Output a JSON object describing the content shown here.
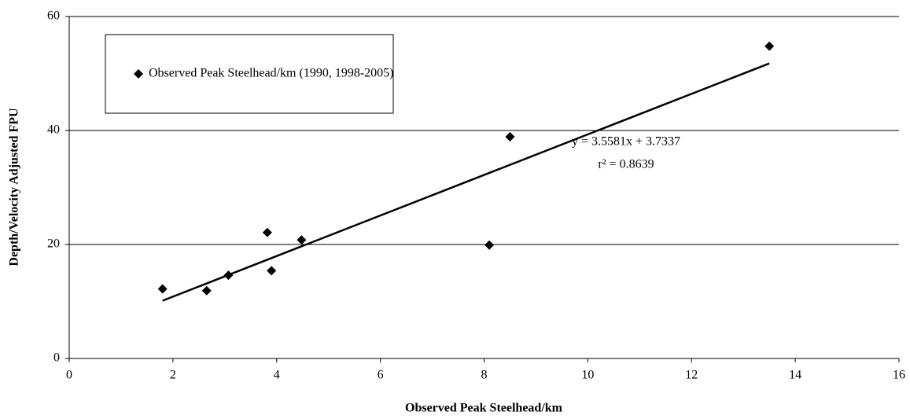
{
  "chart_data": {
    "type": "scatter",
    "x_label": "Observed Peak Steelhead/km",
    "y_label": "Depth/Velocity Adjusted FPU",
    "series": [
      {
        "name": "Observed Peak Steelhead/km (1990, 1998-2005)",
        "color": "#000000",
        "x": [
          1.8,
          2.65,
          3.07,
          3.82,
          3.9,
          4.48,
          8.1,
          8.5,
          13.5
        ],
        "values": [
          12.2,
          11.9,
          14.6,
          22.1,
          15.4,
          20.8,
          19.9,
          38.9,
          54.8
        ]
      }
    ],
    "trendline": {
      "color": "#000000",
      "x": [
        1.8,
        13.5
      ],
      "values": [
        10.14,
        51.77
      ]
    },
    "annotations": [
      "y = 3.5581x + 3.7337",
      "r² = 0.8639"
    ],
    "xlim": [
      0,
      16
    ],
    "xticks": [
      0,
      2,
      4,
      6,
      8,
      10,
      12,
      14,
      16
    ],
    "ylim": [
      0,
      60
    ],
    "yticks": [
      0,
      20,
      40,
      60
    ],
    "grid": true,
    "legend": "top-left"
  }
}
